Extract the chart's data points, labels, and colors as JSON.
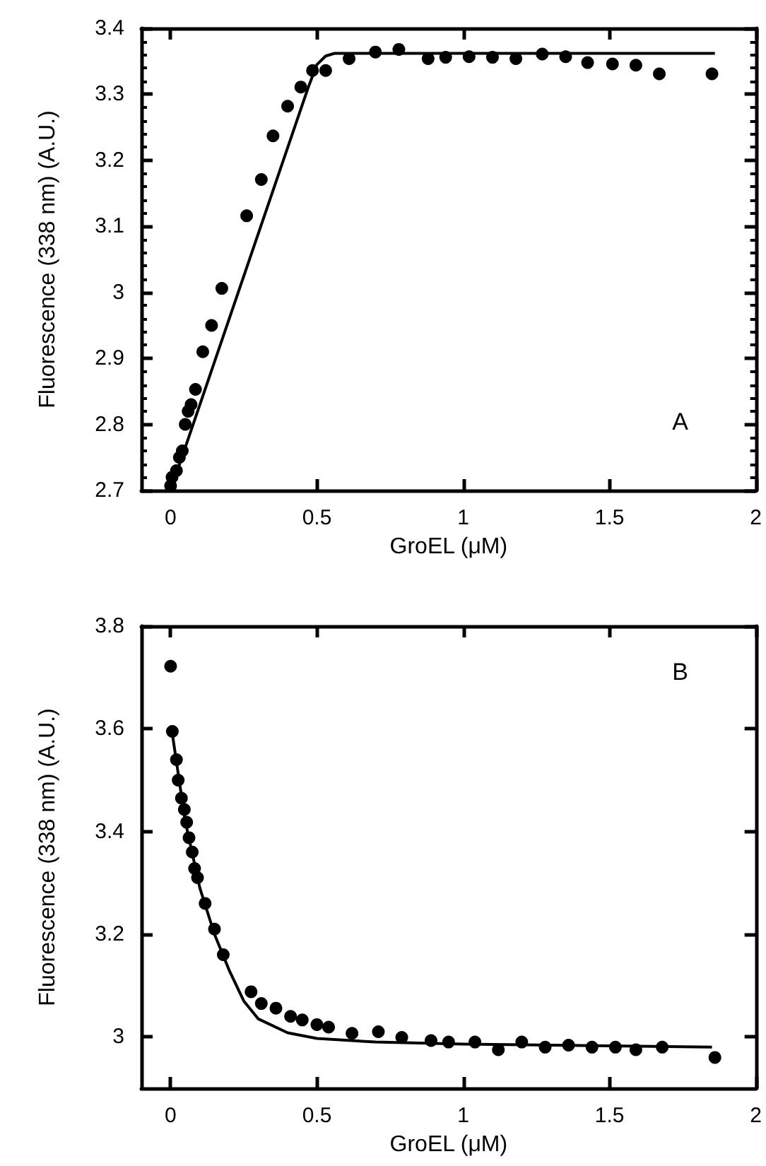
{
  "chart_data": [
    {
      "type": "scatter",
      "xlabel": "GroEL (μM)",
      "ylabel": "Fluorescence (338 nm) (A.U.)",
      "annotations": [
        "A"
      ],
      "xlim": [
        -0.1,
        2
      ],
      "ylim": [
        2.7,
        3.4
      ],
      "xticks": [
        0,
        0.5,
        1,
        1.5,
        2
      ],
      "yticks": [
        2.7,
        2.8,
        2.9,
        3,
        3.1,
        3.2,
        3.3,
        3.4
      ],
      "marker": "circle",
      "grid": false,
      "series": [
        {
          "color": "#000000",
          "x": [
            0,
            0.005,
            0.02,
            0.03,
            0.04,
            0.05,
            0.06,
            0.07,
            0.085,
            0.11,
            0.14,
            0.175,
            0.26,
            0.31,
            0.35,
            0.4,
            0.445,
            0.485,
            0.53,
            0.61,
            0.7,
            0.78,
            0.88,
            0.94,
            1.02,
            1.1,
            1.18,
            1.27,
            1.35,
            1.425,
            1.51,
            1.59,
            1.67,
            1.85
          ],
          "values": [
            2.707,
            2.72,
            2.73,
            2.75,
            2.76,
            2.8,
            2.82,
            2.83,
            2.853,
            2.91,
            2.95,
            3.006,
            3.116,
            3.171,
            3.237,
            3.282,
            3.311,
            3.336,
            3.336,
            3.354,
            3.364,
            3.368,
            3.354,
            3.356,
            3.357,
            3.356,
            3.354,
            3.361,
            3.357,
            3.348,
            3.346,
            3.344,
            3.331,
            3.331
          ]
        },
        {
          "type": "line",
          "color": "#000000",
          "marker": "none",
          "x": [
            0,
            0.47,
            0.5,
            0.53,
            0.56,
            1.86
          ],
          "values": [
            2.7,
            3.31,
            3.345,
            3.358,
            3.362,
            3.362
          ]
        }
      ]
    },
    {
      "type": "scatter",
      "xlabel": "GroEL (μM)",
      "ylabel": "Fluorescence (338 nm) (A.U.)",
      "annotations": [
        "B"
      ],
      "xlim": [
        -0.1,
        2
      ],
      "ylim": [
        2.9,
        3.8
      ],
      "xticks": [
        0,
        0.5,
        1,
        1.5,
        2
      ],
      "yticks": [
        3,
        3.2,
        3.4,
        3.6,
        3.8
      ],
      "marker": "circle",
      "grid": false,
      "series": [
        {
          "color": "#000000",
          "x": [
            0,
            0.006,
            0.02,
            0.026,
            0.037,
            0.047,
            0.055,
            0.063,
            0.074,
            0.082,
            0.092,
            0.118,
            0.15,
            0.18,
            0.275,
            0.31,
            0.36,
            0.41,
            0.45,
            0.5,
            0.54,
            0.62,
            0.71,
            0.79,
            0.89,
            0.95,
            1.04,
            1.12,
            1.2,
            1.28,
            1.36,
            1.44,
            1.52,
            1.59,
            1.68,
            1.86
          ],
          "values": [
            3.722,
            3.595,
            3.54,
            3.5,
            3.465,
            3.443,
            3.418,
            3.388,
            3.36,
            3.328,
            3.31,
            3.26,
            3.21,
            3.16,
            3.088,
            3.065,
            3.056,
            3.04,
            3.033,
            3.024,
            3.019,
            3.007,
            3.01,
            2.999,
            2.993,
            2.99,
            2.99,
            2.975,
            2.99,
            2.98,
            2.984,
            2.98,
            2.98,
            2.975,
            2.98,
            2.96
          ]
        },
        {
          "type": "line",
          "color": "#000000",
          "marker": "none",
          "x": [
            0.006,
            0.05,
            0.1,
            0.15,
            0.2,
            0.25,
            0.3,
            0.4,
            0.5,
            0.7,
            1,
            1.85
          ],
          "values": [
            3.59,
            3.42,
            3.29,
            3.2,
            3.13,
            3.07,
            3.035,
            3.008,
            2.997,
            2.99,
            2.986,
            2.98
          ]
        }
      ]
    }
  ]
}
